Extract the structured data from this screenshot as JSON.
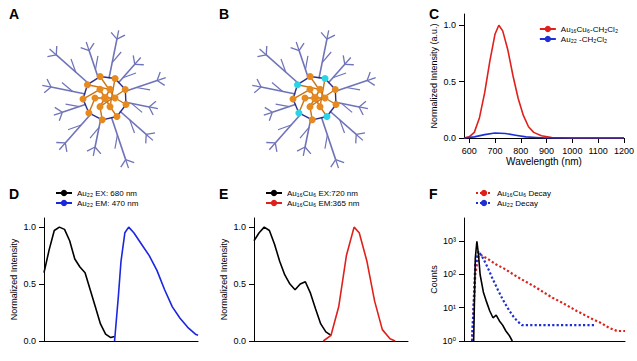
{
  "chart_data": [
    {
      "type": "structure",
      "title": "A",
      "colors": [
        "#e8891e"
      ]
    },
    {
      "type": "structure",
      "title": "B",
      "colors": [
        "#e8891e",
        "#29d4e6"
      ]
    },
    {
      "type": "line",
      "title": "C",
      "x_label": "Wavelength (nm)",
      "y_label": "Normalized Intensity (a.u.)",
      "xlim": [
        580,
        1200
      ],
      "xticks": [
        600,
        700,
        800,
        900,
        1000,
        1100,
        1200
      ],
      "ylim": [
        0,
        1.1
      ],
      "yticks": [
        {
          "value": 0,
          "label": "0.0"
        },
        {
          "value": 0.5,
          "label": "0.5"
        },
        {
          "value": 1,
          "label": "1.0"
        }
      ],
      "grid": false,
      "legend": "upper right",
      "series": [
        {
          "name": "Au₁₆Cu₆-CH₂Cl₂",
          "color": "#e0201b",
          "x": [
            580,
            600,
            620,
            640,
            660,
            680,
            700,
            715,
            730,
            750,
            770,
            790,
            810,
            830,
            850,
            880,
            920,
            1000,
            1200
          ],
          "values": [
            0,
            0.01,
            0.05,
            0.18,
            0.4,
            0.68,
            0.92,
            1.0,
            0.95,
            0.78,
            0.55,
            0.35,
            0.2,
            0.1,
            0.05,
            0.02,
            0.005,
            0,
            0
          ]
        },
        {
          "name": "Au₂₂ -CH₂Cl₂",
          "color": "#1f2fd6",
          "x": [
            580,
            620,
            660,
            700,
            740,
            780,
            820,
            860,
            900,
            1000,
            1200
          ],
          "values": [
            0,
            0.01,
            0.03,
            0.045,
            0.04,
            0.025,
            0.01,
            0.005,
            0,
            0,
            0
          ]
        }
      ]
    },
    {
      "type": "line",
      "title": "D",
      "y_label": "Normalized Intensity",
      "xlim": [
        300,
        900
      ],
      "ylim": [
        0,
        1.08
      ],
      "yticks": [
        {
          "value": 0,
          "label": "0.0"
        },
        {
          "value": 0.5,
          "label": "0.5"
        },
        {
          "value": 1,
          "label": "1.0"
        }
      ],
      "tick_labels": "y",
      "grid": false,
      "legend": "upper left",
      "series": [
        {
          "name": "Au₂₂ EX: 680 nm",
          "color": "#000000",
          "x": [
            300,
            320,
            340,
            360,
            380,
            400,
            420,
            440,
            460,
            480,
            500,
            520,
            540,
            560,
            575
          ],
          "values": [
            0.6,
            0.8,
            0.97,
            1.0,
            0.98,
            0.88,
            0.72,
            0.65,
            0.6,
            0.45,
            0.3,
            0.15,
            0.06,
            0.03,
            0.04
          ]
        },
        {
          "name": "Au₂₂ EM: 470 nm",
          "color": "#1a26e0",
          "x": [
            575,
            590,
            600,
            615,
            630,
            650,
            680,
            710,
            740,
            770,
            800,
            830,
            860,
            890,
            900
          ],
          "values": [
            0,
            0.4,
            0.7,
            0.95,
            1.0,
            0.95,
            0.85,
            0.75,
            0.62,
            0.45,
            0.3,
            0.2,
            0.12,
            0.06,
            0.05
          ]
        }
      ]
    },
    {
      "type": "line",
      "title": "E",
      "y_label": "Normalized Intensity",
      "xlim": [
        300,
        900
      ],
      "ylim": [
        0,
        1.08
      ],
      "yticks": [
        {
          "value": 0,
          "label": "0.0"
        },
        {
          "value": 0.5,
          "label": "0.5"
        },
        {
          "value": 1,
          "label": "1.0"
        }
      ],
      "tick_labels": "y",
      "grid": false,
      "legend": "upper left",
      "series": [
        {
          "name": "Au₁₆Cu₆ EX:720 nm",
          "color": "#000000",
          "x": [
            300,
            320,
            340,
            360,
            380,
            400,
            420,
            440,
            460,
            480,
            500,
            520,
            540,
            560,
            580,
            600
          ],
          "values": [
            0.88,
            0.95,
            1.0,
            0.97,
            0.85,
            0.7,
            0.58,
            0.5,
            0.45,
            0.5,
            0.52,
            0.42,
            0.28,
            0.15,
            0.08,
            0.05
          ]
        },
        {
          "name": "Au₁₆Cu₆ EM:365 nm",
          "color": "#e0201b",
          "x": [
            570,
            600,
            630,
            660,
            690,
            710,
            740,
            770,
            800,
            830,
            850
          ],
          "values": [
            0,
            0.05,
            0.3,
            0.75,
            1.0,
            0.95,
            0.7,
            0.35,
            0.1,
            0.02,
            0
          ]
        }
      ]
    },
    {
      "type": "line",
      "title": "F",
      "y_label": "Counts",
      "log": "y",
      "xlim": [
        0,
        100
      ],
      "ylim": [
        1,
        5000
      ],
      "yticks": [
        {
          "value": 1,
          "label": "10⁰"
        },
        {
          "value": 10,
          "label": "10¹"
        },
        {
          "value": 100,
          "label": "10²"
        },
        {
          "value": 1000,
          "label": "10³"
        }
      ],
      "tick_labels": "y",
      "grid": false,
      "legend": "upper left",
      "series": [
        {
          "name": "Au₁₆Cu₆ Decay",
          "color": "#e0201b",
          "line_style": "dotted",
          "x": [
            5,
            7,
            9,
            10,
            15,
            20,
            25,
            30,
            35,
            40,
            45,
            50,
            55,
            60,
            65,
            70,
            75,
            80,
            85,
            90,
            95,
            100
          ],
          "values": [
            1,
            100,
            350,
            400,
            290,
            200,
            150,
            105,
            75,
            55,
            40,
            28,
            20,
            15,
            11,
            8,
            6,
            4.5,
            3.5,
            2.5,
            2,
            2
          ]
        },
        {
          "name": "Au₂₂ Decay",
          "color": "#1f2fd6",
          "line_style": "dotted",
          "x": [
            5,
            7,
            9,
            12,
            15,
            18,
            21,
            24,
            27,
            30,
            33,
            36,
            40,
            50,
            60,
            70,
            82
          ],
          "values": [
            1,
            200,
            500,
            300,
            150,
            70,
            35,
            18,
            10,
            6,
            4,
            3,
            3,
            3,
            3,
            3,
            3
          ]
        },
        {
          "color": "#000000",
          "line_style": "solid",
          "x": [
            6,
            7,
            8,
            9,
            10,
            12,
            14,
            16,
            18,
            20,
            22,
            24,
            26,
            28,
            30
          ],
          "values": [
            1,
            300,
            1000,
            400,
            100,
            30,
            15,
            8,
            5,
            6,
            4,
            3,
            2,
            1.5,
            1
          ]
        }
      ]
    }
  ]
}
